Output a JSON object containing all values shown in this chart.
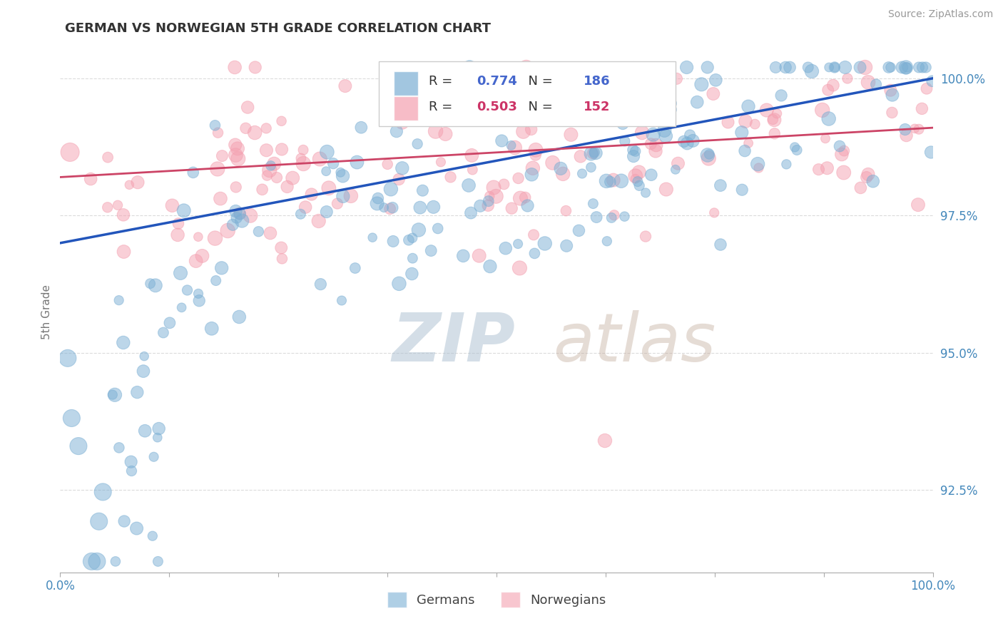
{
  "title": "GERMAN VS NORWEGIAN 5TH GRADE CORRELATION CHART",
  "source": "Source: ZipAtlas.com",
  "ylabel": "5th Grade",
  "xlim": [
    0.0,
    1.0
  ],
  "ylim": [
    0.91,
    1.005
  ],
  "yticks": [
    0.925,
    0.95,
    0.975,
    1.0
  ],
  "ytick_labels": [
    "92.5%",
    "95.0%",
    "97.5%",
    "100.0%"
  ],
  "german_color": "#7BAFD4",
  "norwegian_color": "#F4A0B0",
  "german_R": 0.774,
  "german_N": 186,
  "norwegian_R": 0.503,
  "norwegian_N": 152,
  "background_color": "#FFFFFF",
  "grid_color": "#CCCCCC",
  "title_color": "#333333",
  "axis_label_color": "#777777",
  "tick_label_color": "#4488BB",
  "legend_label_german": "Germans",
  "legend_label_norwegian": "Norwegians",
  "trend_blue": "#2255BB",
  "trend_pink": "#CC4466",
  "r_blue": "#4466CC",
  "r_pink": "#CC3366"
}
